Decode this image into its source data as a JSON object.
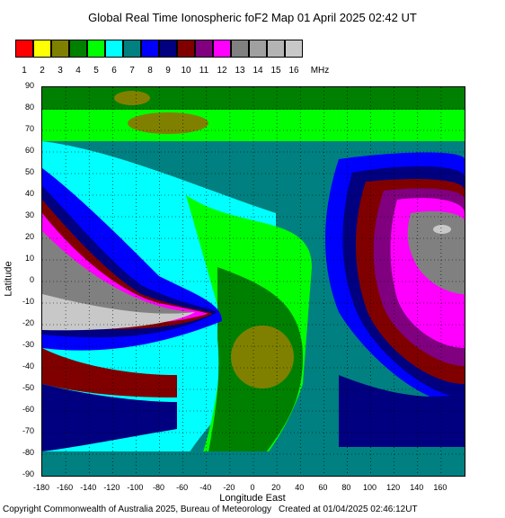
{
  "title": "Global Real Time Ionospheric foF2 Map   01 April 2025 02:42 UT",
  "legend": {
    "unit": "MHz",
    "bins": [
      {
        "label": "1",
        "color": "#ff0000"
      },
      {
        "label": "2",
        "color": "#ffff00"
      },
      {
        "label": "3",
        "color": "#808000"
      },
      {
        "label": "4",
        "color": "#008000"
      },
      {
        "label": "5",
        "color": "#00ff00"
      },
      {
        "label": "6",
        "color": "#00ffff"
      },
      {
        "label": "7",
        "color": "#008080"
      },
      {
        "label": "8",
        "color": "#0000ff"
      },
      {
        "label": "9",
        "color": "#000080"
      },
      {
        "label": "10",
        "color": "#800000"
      },
      {
        "label": "11",
        "color": "#800080"
      },
      {
        "label": "12",
        "color": "#ff00ff"
      },
      {
        "label": "13",
        "color": "#808080"
      },
      {
        "label": "14",
        "color": "#a0a0a0"
      },
      {
        "label": "15",
        "color": "#b4b4b4"
      },
      {
        "label": "16",
        "color": "#c8c8c8"
      }
    ]
  },
  "axes": {
    "x_title": "Longitude East",
    "y_title": "Latitude",
    "x_ticks": [
      "-180",
      "-160",
      "-140",
      "-120",
      "-100",
      "-80",
      "-60",
      "-40",
      "-20",
      "0",
      "20",
      "40",
      "60",
      "80",
      "100",
      "120",
      "140",
      "160"
    ],
    "y_ticks": [
      "90",
      "80",
      "70",
      "60",
      "50",
      "40",
      "30",
      "20",
      "10",
      "0",
      "-10",
      "-20",
      "-30",
      "-40",
      "-50",
      "-60",
      "-70",
      "-80",
      "-90"
    ]
  },
  "footer": {
    "copyright": "Copyright Commonwealth of Australia 2025, Bureau of Meteorology",
    "created": "Created at 01/04/2025 02:46:12UT"
  }
}
